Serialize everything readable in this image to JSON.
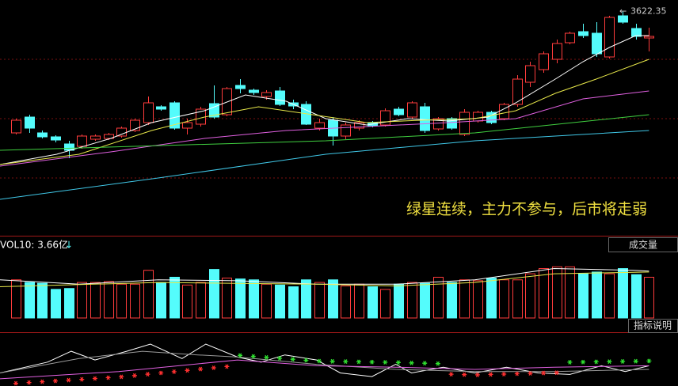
{
  "chart_data": [
    {
      "type": "candlestick",
      "annotation": "绿星连续，主力不参与，后市将走弱",
      "up_color": "#ff3c3c",
      "down_color": "#54fcfc",
      "xlim": [
        -1.2,
        50.2
      ],
      "ylim": [
        3341,
        3637
      ],
      "open": [
        3469,
        3489,
        3469,
        3464,
        3455,
        3452,
        3461,
        3462,
        3465,
        3472,
        3482,
        3502,
        3507,
        3475,
        3480,
        3506,
        3492,
        3529,
        3523,
        3515,
        3522,
        3507,
        3505,
        3475,
        3485,
        3465,
        3475,
        3482,
        3479,
        3499,
        3489,
        3502,
        3474,
        3487,
        3467,
        3484,
        3495,
        3487,
        3505,
        3533,
        3549,
        3562,
        3583,
        3597,
        3595,
        3565,
        3617,
        3601,
        3589
      ],
      "high": [
        3487,
        3492,
        3472,
        3466,
        3459,
        3467,
        3467,
        3469,
        3477,
        3487,
        3515,
        3504,
        3509,
        3487,
        3502,
        3529,
        3527,
        3537,
        3525,
        3523,
        3527,
        3511,
        3509,
        3487,
        3489,
        3482,
        3485,
        3484,
        3500,
        3502,
        3509,
        3507,
        3489,
        3489,
        3499,
        3497,
        3497,
        3507,
        3542,
        3559,
        3572,
        3587,
        3597,
        3607,
        3609,
        3617,
        3622.35,
        3607,
        3602
      ],
      "low": [
        3467,
        3469,
        3462,
        3457,
        3437,
        3449,
        3459,
        3460,
        3463,
        3470,
        3479,
        3497,
        3473,
        3467,
        3477,
        3487,
        3490,
        3519,
        3517,
        3511,
        3503,
        3499,
        3479,
        3472,
        3453,
        3461,
        3472,
        3476,
        3477,
        3490,
        3487,
        3469,
        3472,
        3473,
        3465,
        3482,
        3480,
        3485,
        3502,
        3527,
        3545,
        3557,
        3581,
        3589,
        3565,
        3563,
        3607,
        3587,
        3572
      ],
      "close": [
        3485,
        3475,
        3464,
        3460,
        3447,
        3465,
        3465,
        3467,
        3475,
        3485,
        3507,
        3499,
        3475,
        3482,
        3499,
        3489,
        3525,
        3525,
        3520,
        3520,
        3505,
        3503,
        3480,
        3482,
        3465,
        3479,
        3482,
        3478,
        3497,
        3492,
        3507,
        3472,
        3487,
        3475,
        3495,
        3495,
        3482,
        3505,
        3537,
        3554,
        3569,
        3582,
        3595,
        3592,
        3569,
        3615,
        3609,
        3591,
        3591
      ],
      "lines": [
        {
          "color": "#ffffff",
          "x": [
            -1.2,
            3.1,
            7.2,
            10.3,
            14.3,
            17.4,
            20.5,
            23.5,
            26.6,
            29.7,
            32.8,
            35.8,
            37.9,
            40.9,
            43,
            45,
            47,
            48
          ],
          "values": [
            3429,
            3442,
            3462,
            3482,
            3497,
            3517,
            3509,
            3487,
            3479,
            3487,
            3484,
            3489,
            3507,
            3537,
            3559,
            3577,
            3592,
            3592
          ]
        },
        {
          "color": "#e8e84a",
          "x": [
            -1.2,
            4.8,
            10.3,
            14.3,
            18.4,
            22.5,
            26.6,
            30.7,
            34.8,
            37.9,
            40.9,
            44,
            48
          ],
          "values": [
            3429,
            3442,
            3472,
            3489,
            3502,
            3492,
            3482,
            3485,
            3487,
            3497,
            3519,
            3537,
            3562
          ]
        },
        {
          "color": "#e060e0",
          "x": [
            -1.2,
            7.2,
            14.3,
            20.5,
            26.6,
            32.8,
            37.9,
            43,
            48
          ],
          "values": [
            3427,
            3445,
            3462,
            3472,
            3477,
            3482,
            3487,
            3512,
            3522
          ]
        },
        {
          "color": "#40d040",
          "x": [
            -1.2,
            23.5,
            34.8,
            48
          ],
          "values": [
            3447,
            3459,
            3469,
            3492
          ]
        },
        {
          "color": "#40c8e8",
          "x": [
            -1.2,
            10.8,
            23.5,
            34.8,
            48
          ],
          "values": [
            3385,
            3412,
            3442,
            3459,
            3472
          ]
        }
      ]
    },
    {
      "type": "bar",
      "title": "VOL10: 3.66亿",
      "xlim": [
        -1.2,
        50.2
      ],
      "ylim": [
        0,
        7.3
      ],
      "values": [
        4.4,
        4.1,
        4.0,
        3.3,
        3.4,
        4.1,
        4.1,
        4.2,
        3.9,
        3.9,
        5.5,
        4.1,
        4.7,
        3.8,
        4.1,
        5.6,
        4.6,
        4.5,
        4.4,
        3.9,
        3.8,
        3.6,
        4.4,
        4.1,
        4.4,
        3.7,
        3.9,
        3.6,
        3.3,
        3.9,
        4.1,
        4.0,
        4.7,
        4.1,
        4.4,
        4.3,
        4.6,
        4.4,
        4.4,
        5.1,
        5.7,
        5.9,
        5.9,
        5.1,
        5.3,
        5.1,
        5.7,
        5.0,
        4.7
      ],
      "lines": [
        {
          "color": "#ffffff",
          "x": [
            -1.2,
            4.8,
            10.8,
            16.8,
            22.8,
            28.8,
            34.8,
            40.8,
            46.8,
            48
          ],
          "values": [
            4.4,
            3.9,
            4.4,
            4.3,
            3.9,
            3.9,
            4.4,
            5.7,
            5.5,
            5.4
          ]
        },
        {
          "color": "#e8e84a",
          "x": [
            -1.2,
            10.8,
            22.8,
            28.8,
            34.8,
            40.8,
            48
          ],
          "values": [
            3.6,
            4.1,
            3.9,
            3.7,
            4.1,
            5.1,
            5.3
          ]
        }
      ]
    },
    {
      "type": "line",
      "xlim": [
        -1.2,
        50.2
      ],
      "ylim": [
        0,
        70
      ],
      "lines": [
        {
          "color": "#ffffff",
          "x": [
            -1.2,
            2.4,
            4.2,
            6,
            8.4,
            10.2,
            12.6,
            14.4,
            16.8,
            18.6,
            20.4,
            22.8,
            24.6,
            27,
            28.8,
            30,
            32.4,
            34.8,
            37.2,
            39.6,
            42,
            44.4,
            46.2,
            48
          ],
          "values": [
            18,
            33,
            48,
            36,
            48,
            58,
            38,
            58,
            40,
            33,
            43,
            36,
            18,
            13,
            30,
            18,
            26,
            18,
            26,
            18,
            16,
            28,
            20,
            28
          ]
        },
        {
          "color": "#9a9a9a",
          "x": [
            -1.2,
            4.8,
            9.6,
            13.8,
            16.8,
            22.8,
            28.8,
            34.8,
            40.8,
            48
          ],
          "values": [
            18,
            38,
            48,
            43,
            40,
            30,
            23,
            20,
            20,
            23
          ]
        },
        {
          "color": "#e060e0",
          "x": [
            -1.2,
            7.8,
            16.8,
            22.8,
            28.8,
            34.8,
            40.8,
            48
          ],
          "values": [
            10,
            20,
            36,
            28,
            26,
            23,
            26,
            28
          ]
        }
      ],
      "signal_colors": [
        "#ff3030",
        "#ff3030",
        "#ff3030",
        "#ff3030",
        "#ff3030",
        "#ff3030",
        "#ff3030",
        "#ff3030",
        "#ff3030",
        "#ff3030",
        "#ff3030",
        "#ff3030",
        "#ff3030",
        "#ff3030",
        "#ff3030",
        "#ff3030",
        "#ff3030",
        "#30e030",
        "#30e030",
        "#30e030",
        "#30e030",
        "#30e030",
        "#30e030",
        "#30e030",
        "#30e030",
        "#30e030",
        "#30e030",
        "#30e030",
        "#30e030",
        "#30e030",
        "#30e030",
        "#30e030",
        "#30e030",
        "#ff3030",
        "#ff3030",
        "#ff3030",
        "#ff3030",
        "#ff3030",
        "#ff3030",
        "#ff3030",
        "#ff3030",
        "#ff3030",
        "#30e030",
        "#30e030",
        "#30e030",
        "#30e030",
        "#30e030",
        "#30e030",
        "#30e030"
      ]
    }
  ],
  "buttons": {
    "indicator": "成交量",
    "help": "指标说明"
  }
}
